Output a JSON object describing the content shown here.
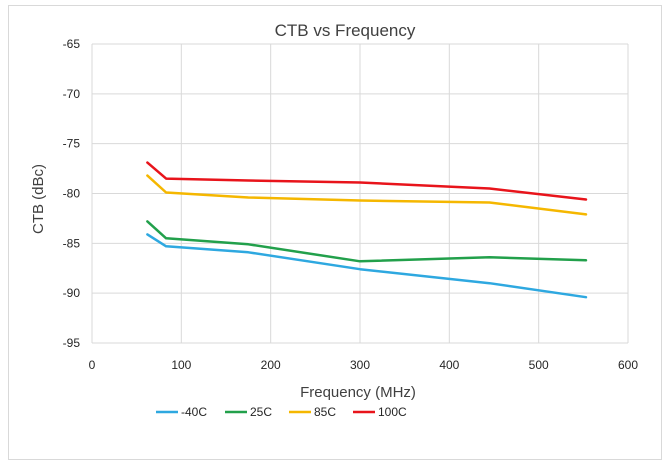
{
  "chart_data": {
    "type": "line",
    "title": "CTB vs Frequency",
    "xlabel": "Frequency (MHz)",
    "ylabel": "CTB (dBc)",
    "xlim": [
      0,
      600
    ],
    "ylim": [
      -95,
      -65
    ],
    "x_ticks": [
      0,
      100,
      200,
      300,
      400,
      500,
      600
    ],
    "y_ticks": [
      -65,
      -70,
      -75,
      -80,
      -85,
      -90,
      -95
    ],
    "grid": true,
    "legend_position": "bottom",
    "series": [
      {
        "name": "-40C",
        "color": "#2ea8e0",
        "x": [
          62,
          83,
          175,
          300,
          445,
          553
        ],
        "y": [
          -84.1,
          -85.3,
          -85.9,
          -87.6,
          -89.0,
          -90.4
        ]
      },
      {
        "name": "25C",
        "color": "#22a04b",
        "x": [
          62,
          83,
          175,
          300,
          445,
          553
        ],
        "y": [
          -82.8,
          -84.5,
          -85.1,
          -86.8,
          -86.4,
          -86.7
        ]
      },
      {
        "name": "85C",
        "color": "#f5b700",
        "x": [
          62,
          83,
          175,
          300,
          445,
          553
        ],
        "y": [
          -78.2,
          -79.9,
          -80.4,
          -80.7,
          -80.9,
          -82.1
        ]
      },
      {
        "name": "100C",
        "color": "#e8141b",
        "x": [
          62,
          83,
          175,
          300,
          445,
          553
        ],
        "y": [
          -76.9,
          -78.5,
          -78.7,
          -78.9,
          -79.5,
          -80.6
        ]
      }
    ]
  }
}
